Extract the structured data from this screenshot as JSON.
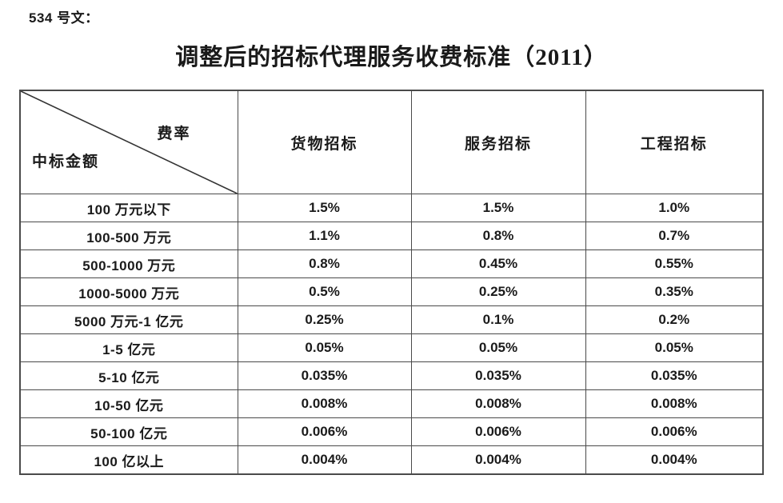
{
  "doc_label": "534 号文：",
  "title": "调整后的招标代理服务收费标准（2011）",
  "table": {
    "corner": {
      "top_right_label": "费率",
      "bottom_left_label": "中标金额"
    },
    "columns": [
      "货物招标",
      "服务招标",
      "工程招标"
    ],
    "rows": [
      {
        "label": "100 万元以下",
        "values": [
          "1.5%",
          "1.5%",
          "1.0%"
        ]
      },
      {
        "label": "100-500 万元",
        "values": [
          "1.1%",
          "0.8%",
          "0.7%"
        ]
      },
      {
        "label": "500-1000 万元",
        "values": [
          "0.8%",
          "0.45%",
          "0.55%"
        ]
      },
      {
        "label": "1000-5000 万元",
        "values": [
          "0.5%",
          "0.25%",
          "0.35%"
        ]
      },
      {
        "label": "5000 万元-1 亿元",
        "values": [
          "0.25%",
          "0.1%",
          "0.2%"
        ]
      },
      {
        "label": "1-5 亿元",
        "values": [
          "0.05%",
          "0.05%",
          "0.05%"
        ]
      },
      {
        "label": "5-10 亿元",
        "values": [
          "0.035%",
          "0.035%",
          "0.035%"
        ]
      },
      {
        "label": "10-50 亿元",
        "values": [
          "0.008%",
          "0.008%",
          "0.008%"
        ]
      },
      {
        "label": "50-100 亿元",
        "values": [
          "0.006%",
          "0.006%",
          "0.006%"
        ]
      },
      {
        "label": "100 亿以上",
        "values": [
          "0.004%",
          "0.004%",
          "0.004%"
        ]
      }
    ],
    "colors": {
      "border": "#4a4a4a",
      "text": "#1a1a1a",
      "background": "#ffffff"
    }
  }
}
